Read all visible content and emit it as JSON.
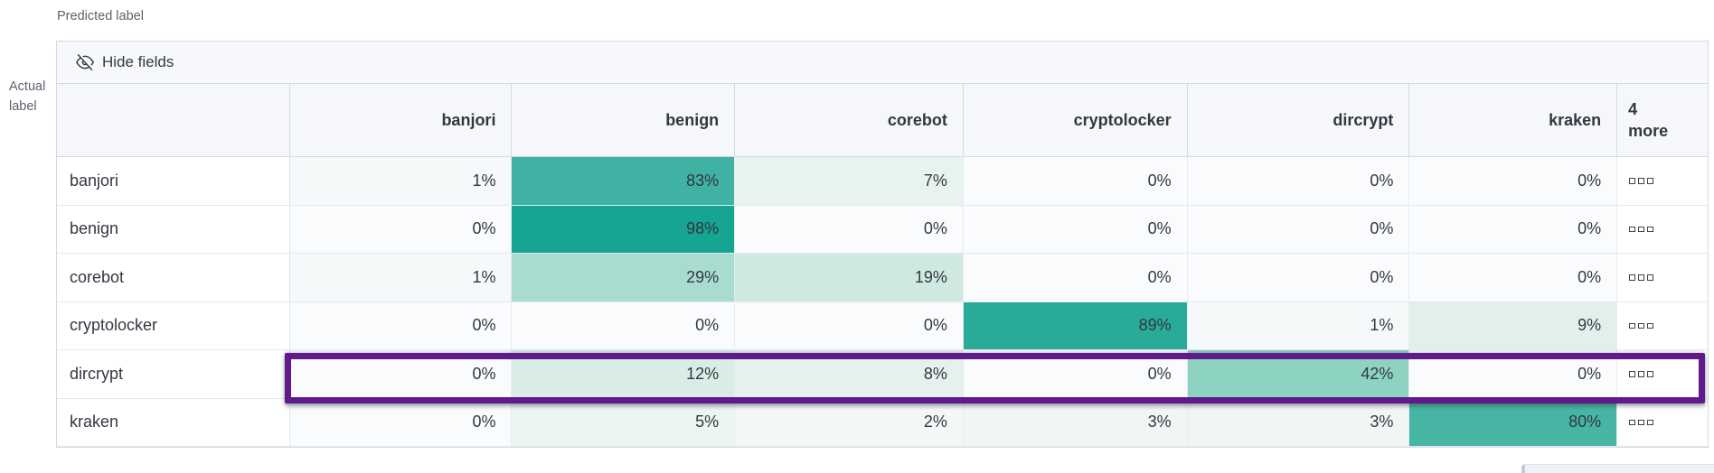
{
  "axis": {
    "predicted": "Predicted label",
    "actual": "Actual label"
  },
  "toolbar": {
    "hide_fields": "Hide fields"
  },
  "grid": {
    "columns": [
      "banjori",
      "benign",
      "corebot",
      "cryptolocker",
      "dircrypt",
      "kraken"
    ],
    "more_label_line1": "4",
    "more_label_line2": "more",
    "row_actions_icon": "boxes-horizontal-icon",
    "rows": [
      {
        "label": "banjori",
        "cells": [
          {
            "text": "1%",
            "bg": "#f6f9fa"
          },
          {
            "text": "83%",
            "bg": "#40b2a3"
          },
          {
            "text": "7%",
            "bg": "#e7f3ef"
          },
          {
            "text": "0%",
            "bg": "#fafbfd"
          },
          {
            "text": "0%",
            "bg": "#fafbfd"
          },
          {
            "text": "0%",
            "bg": "#fafbfd"
          }
        ]
      },
      {
        "label": "benign",
        "cells": [
          {
            "text": "0%",
            "bg": "#fafbfd"
          },
          {
            "text": "98%",
            "bg": "#16a493"
          },
          {
            "text": "0%",
            "bg": "#fafbfd"
          },
          {
            "text": "0%",
            "bg": "#fafbfd"
          },
          {
            "text": "0%",
            "bg": "#fafbfd"
          },
          {
            "text": "0%",
            "bg": "#fafbfd"
          }
        ]
      },
      {
        "label": "corebot",
        "cells": [
          {
            "text": "1%",
            "bg": "#f6f9fa"
          },
          {
            "text": "29%",
            "bg": "#a9dcd0"
          },
          {
            "text": "19%",
            "bg": "#cfe9e0"
          },
          {
            "text": "0%",
            "bg": "#fafbfd"
          },
          {
            "text": "0%",
            "bg": "#fafbfd"
          },
          {
            "text": "0%",
            "bg": "#fafbfd"
          }
        ]
      },
      {
        "label": "cryptolocker",
        "cells": [
          {
            "text": "0%",
            "bg": "#fafbfd"
          },
          {
            "text": "0%",
            "bg": "#fafbfd"
          },
          {
            "text": "0%",
            "bg": "#fafbfd"
          },
          {
            "text": "89%",
            "bg": "#2aab98"
          },
          {
            "text": "1%",
            "bg": "#f6f9fa"
          },
          {
            "text": "9%",
            "bg": "#e1f0ea"
          }
        ]
      },
      {
        "label": "dircrypt",
        "cells": [
          {
            "text": "0%",
            "bg": "#fafbfd"
          },
          {
            "text": "12%",
            "bg": "#d9ede6"
          },
          {
            "text": "8%",
            "bg": "#e4f1ec"
          },
          {
            "text": "0%",
            "bg": "#fafbfd"
          },
          {
            "text": "42%",
            "bg": "#8ed3c2"
          },
          {
            "text": "0%",
            "bg": "#fafbfd"
          }
        ]
      },
      {
        "label": "kraken",
        "cells": [
          {
            "text": "0%",
            "bg": "#fafbfd"
          },
          {
            "text": "5%",
            "bg": "#ecf5f1"
          },
          {
            "text": "2%",
            "bg": "#f3f8f6"
          },
          {
            "text": "3%",
            "bg": "#eff6f4"
          },
          {
            "text": "3%",
            "bg": "#eff6f4"
          },
          {
            "text": "80%",
            "bg": "#46b5a4"
          }
        ]
      }
    ],
    "highlighted_row": "dircrypt",
    "highlight_color": "#611a8c"
  },
  "chart_data": {
    "type": "heatmap",
    "xlabel": "Predicted label",
    "ylabel": "Actual label",
    "x_categories": [
      "banjori",
      "benign",
      "corebot",
      "cryptolocker",
      "dircrypt",
      "kraken"
    ],
    "y_categories": [
      "banjori",
      "benign",
      "corebot",
      "cryptolocker",
      "dircrypt",
      "kraken"
    ],
    "values_percent": [
      [
        1,
        83,
        7,
        0,
        0,
        0
      ],
      [
        0,
        98,
        0,
        0,
        0,
        0
      ],
      [
        1,
        29,
        19,
        0,
        0,
        0
      ],
      [
        0,
        0,
        0,
        89,
        1,
        9
      ],
      [
        0,
        12,
        8,
        0,
        42,
        0
      ],
      [
        0,
        5,
        2,
        3,
        3,
        80
      ]
    ],
    "hidden_columns_indicator": "4 more",
    "annotations": [
      "dircrypt row outlined in purple"
    ],
    "color_scale": {
      "min": "#fafbfd",
      "max": "#16a493"
    },
    "legend_position": "none",
    "grid_on": true
  }
}
